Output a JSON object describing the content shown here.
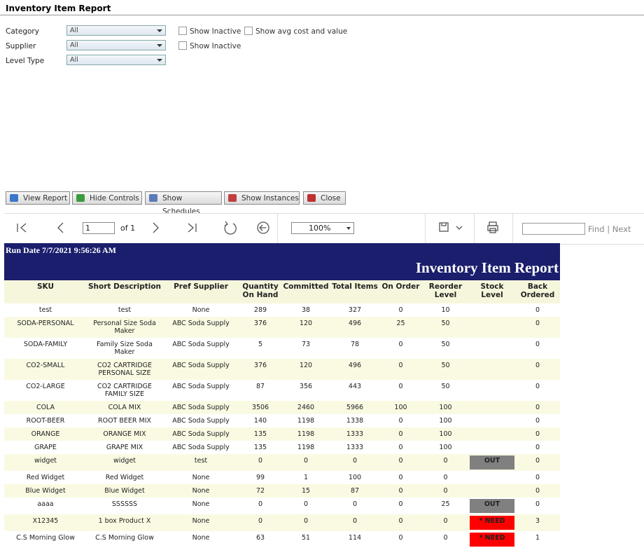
{
  "header": {
    "title": "Inventory Item Report"
  },
  "filters": [
    {
      "label": "Category",
      "value": "All"
    },
    {
      "label": "Supplier",
      "value": "All"
    },
    {
      "label": "Level Type",
      "value": "All"
    }
  ],
  "checkboxes": [
    {
      "label": "Show Inactive",
      "row": 0
    },
    {
      "label": "Show avg cost and value",
      "row": 0
    },
    {
      "label": "Show Inactive",
      "row": 1
    }
  ],
  "buttons": [
    "View Report",
    "Hide Controls",
    "Show Schedules",
    "Show Instances",
    "Close"
  ],
  "toolbar": {
    "page": "1",
    "of": "of 1",
    "zoom": "100%",
    "find": "Find",
    "separator": "|",
    "next": "Next"
  },
  "report": {
    "run_date": "Run Date 7/7/2021 9:56:26 AM",
    "title": "Inventory Item Report",
    "columns": [
      "SKU",
      "Short Description",
      "Pref Supplier",
      "Quantity On Hand",
      "Committed",
      "Total Items",
      "On Order",
      "Reorder Level",
      "Stock Level",
      "Back Ordered"
    ],
    "rows": [
      [
        "test",
        "test",
        "None",
        289,
        38,
        327,
        0,
        10,
        null,
        0
      ],
      [
        "SODA-PERSONAL",
        "Personal Size Soda Maker",
        "ABC Soda Supply",
        376,
        120,
        496,
        25,
        50,
        null,
        0
      ],
      [
        "SODA-FAMILY",
        "Family Size Soda Maker",
        "ABC Soda Supply",
        5,
        73,
        78,
        0,
        50,
        null,
        0
      ],
      [
        "CO2-SMALL",
        "CO2 CARTRIDGE PERSONAL SIZE",
        "ABC Soda Supply",
        376,
        120,
        496,
        0,
        50,
        null,
        0
      ],
      [
        "CO2-LARGE",
        "CO2 CARTRIDGE FAMILY SIZE",
        "ABC Soda Supply",
        87,
        356,
        443,
        0,
        50,
        null,
        0
      ],
      [
        "COLA",
        "COLA MIX",
        "ABC Soda Supply",
        3506,
        2460,
        5966,
        100,
        100,
        null,
        0
      ],
      [
        "ROOT-BEER",
        "ROOT BEER MIX",
        "ABC Soda Supply",
        140,
        1198,
        1338,
        0,
        100,
        null,
        0
      ],
      [
        "ORANGE",
        "ORANGE MIX",
        "ABC Soda Supply",
        135,
        1198,
        1333,
        0,
        100,
        null,
        0
      ],
      [
        "GRAPE",
        "GRAPE MIX",
        "ABC Soda Supply",
        135,
        1198,
        1333,
        0,
        100,
        null,
        0
      ],
      [
        "widget",
        "widget",
        "test",
        0,
        0,
        0,
        0,
        0,
        {
          "label": "OUT",
          "color": "#808080"
        },
        0
      ],
      [
        "Red Widget",
        "Red Widget",
        "None",
        99,
        1,
        100,
        0,
        0,
        null,
        0
      ],
      [
        "Blue Widget",
        "Blue Widget",
        "None",
        72,
        15,
        87,
        0,
        0,
        null,
        0
      ],
      [
        "aaaa",
        "SSSSSS",
        "None",
        0,
        0,
        0,
        0,
        25,
        {
          "label": "OUT",
          "color": "#808080"
        },
        0
      ],
      [
        "X12345",
        "1 box Product X",
        "None",
        0,
        0,
        0,
        0,
        0,
        {
          "label": "* NEED",
          "color": "#ff0000"
        },
        3
      ],
      [
        "C.S Morning Glow",
        "C.S Morning Glow",
        "None",
        63,
        51,
        114,
        0,
        0,
        {
          "label": "* NEED",
          "color": "#ff0000"
        },
        1
      ]
    ]
  }
}
